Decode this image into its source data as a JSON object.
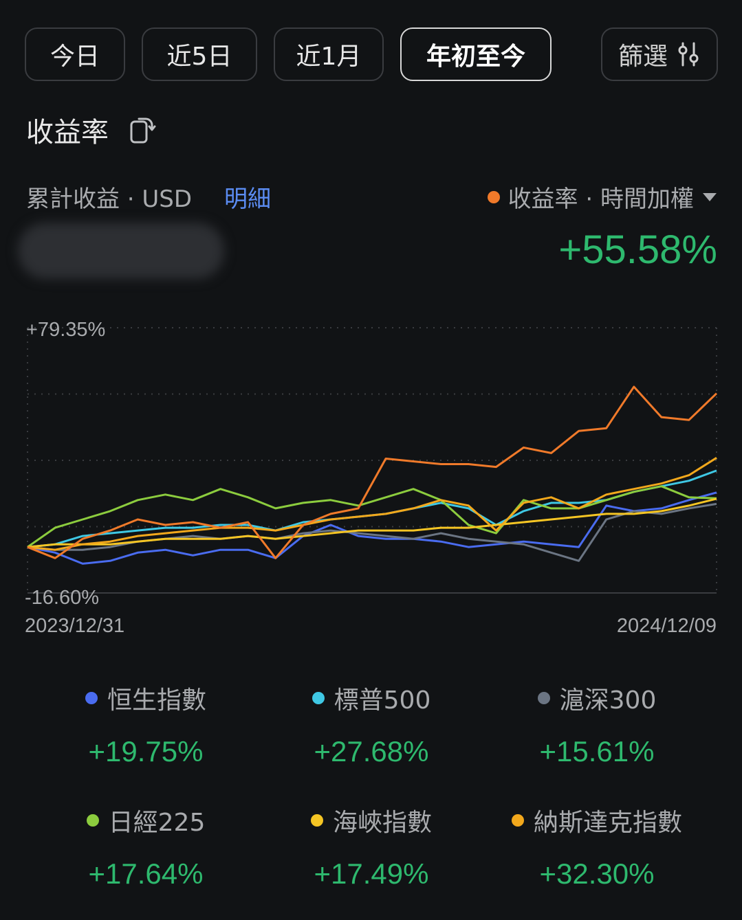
{
  "tabs": [
    {
      "label": "今日",
      "active": false
    },
    {
      "label": "近5日",
      "active": false
    },
    {
      "label": "近1月",
      "active": false
    },
    {
      "label": "年初至今",
      "active": true
    }
  ],
  "filter_label": "篩選",
  "section_title": "收益率",
  "cum_label": "累計收益 · USD",
  "detail_link": "明細",
  "rate_selector": {
    "label": "收益率 · 時間加權",
    "color": "#f07a2a"
  },
  "main_value": "+55.58%",
  "chart_data": {
    "type": "line",
    "y_max_label": "+79.35%",
    "y_min_label": "-16.60%",
    "ylim": [
      -16.6,
      79.35
    ],
    "x_start_label": "2023/12/31",
    "x_end_label": "2024/12/09",
    "x": [
      0,
      0.04,
      0.08,
      0.12,
      0.16,
      0.2,
      0.24,
      0.28,
      0.32,
      0.36,
      0.4,
      0.44,
      0.48,
      0.52,
      0.56,
      0.6,
      0.64,
      0.68,
      0.72,
      0.76,
      0.8,
      0.84,
      0.88,
      0.92,
      0.96,
      1.0
    ],
    "series": [
      {
        "name": "收益率 · 時間加權",
        "color": "#f07a2a",
        "values": [
          0,
          -4,
          3,
          6,
          10,
          8,
          9,
          7,
          9,
          -4,
          8,
          12,
          14,
          32,
          31,
          30,
          30,
          29,
          36,
          34,
          42,
          43,
          58,
          47,
          46,
          55.58
        ]
      },
      {
        "name": "恒生指數",
        "color": "#4a6cf0",
        "values": [
          0,
          -2,
          -6,
          -5,
          -2,
          -1,
          -3,
          -1,
          -1,
          -4,
          4,
          8,
          4,
          3,
          3,
          2,
          0,
          1,
          2,
          1,
          0,
          15,
          13,
          14,
          17,
          19.75
        ]
      },
      {
        "name": "標普500",
        "color": "#3fc8e4",
        "values": [
          0,
          1,
          4,
          5,
          6,
          7,
          7,
          8,
          8,
          6,
          9,
          10,
          11,
          12,
          14,
          16,
          14,
          8,
          13,
          16,
          16,
          17,
          20,
          22,
          24,
          27.68
        ]
      },
      {
        "name": "滬深300",
        "color": "#6b7583",
        "values": [
          0,
          -1,
          -1,
          0,
          2,
          3,
          4,
          3,
          4,
          3,
          5,
          6,
          5,
          4,
          3,
          5,
          3,
          2,
          1,
          -2,
          -5,
          10,
          13,
          12,
          14,
          15.61
        ]
      },
      {
        "name": "日經225",
        "color": "#8ccc3e",
        "values": [
          0,
          7,
          10,
          13,
          17,
          19,
          17,
          21,
          18,
          14,
          16,
          17,
          15,
          18,
          21,
          17,
          8,
          5,
          17,
          14,
          14,
          17,
          20,
          22,
          18,
          17.64
        ]
      },
      {
        "name": "海峽指數",
        "color": "#f5c524",
        "values": [
          0,
          1,
          1,
          1,
          2,
          3,
          3,
          3,
          4,
          3,
          4,
          5,
          6,
          6,
          6,
          7,
          7,
          8,
          9,
          10,
          11,
          12,
          12,
          13,
          15,
          17.49
        ]
      },
      {
        "name": "納斯達克指數",
        "color": "#f2a81c",
        "values": [
          0,
          -1,
          1,
          2,
          4,
          5,
          6,
          7,
          7,
          6,
          8,
          10,
          11,
          12,
          14,
          17,
          15,
          6,
          16,
          18,
          14,
          19,
          21,
          23,
          26,
          32.3
        ]
      }
    ]
  },
  "legend": [
    {
      "name": "恒生指數",
      "value": "+19.75%",
      "color": "#4a6cf0"
    },
    {
      "name": "標普500",
      "value": "+27.68%",
      "color": "#3fc8e4"
    },
    {
      "name": "滬深300",
      "value": "+15.61%",
      "color": "#6b7583"
    },
    {
      "name": "日經225",
      "value": "+17.64%",
      "color": "#8ccc3e"
    },
    {
      "name": "海峽指數",
      "value": "+17.49%",
      "color": "#f5c524"
    },
    {
      "name": "納斯達克指數",
      "value": "+32.30%",
      "color": "#f2a81c"
    }
  ]
}
